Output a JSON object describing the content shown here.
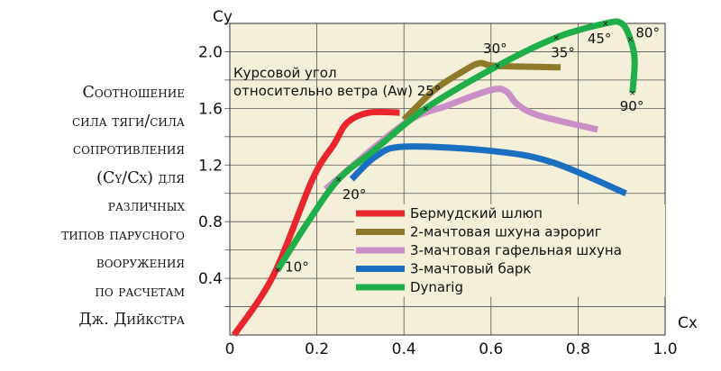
{
  "chart_data": {
    "type": "line",
    "title_lines": [
      "Соотношение",
      "сила тяги/сила",
      "сопротивления",
      "(Cy/Cx) для",
      "различных",
      "типов парусного",
      "вооружения",
      "по расчетам",
      "Дж. Дийкстра"
    ],
    "xlabel": "Cx",
    "ylabel": "Cy",
    "xlim": [
      0,
      1.0
    ],
    "ylim": [
      0,
      2.2
    ],
    "x_ticks": [
      "0",
      "0.2",
      "0.4",
      "0.6",
      "0.8",
      "1.0"
    ],
    "x_tick_values": [
      0,
      0.2,
      0.4,
      0.6,
      0.8,
      1.0
    ],
    "y_ticks": [
      "0.4",
      "0.8",
      "1.2",
      "1.6",
      "2.0"
    ],
    "y_tick_values": [
      0.4,
      0.8,
      1.2,
      1.6,
      2.0
    ],
    "grid": true,
    "legend_placement": "center-bottom",
    "annotation_lines": [
      "Курсовой угол",
      "относительно ветра (Aw) 25°"
    ],
    "series": [
      {
        "name": "Бермудский шлюп",
        "color": "#e8262b",
        "points": [
          [
            0.01,
            0
          ],
          [
            0.1,
            0.42
          ],
          [
            0.19,
            1.1
          ],
          [
            0.24,
            1.35
          ],
          [
            0.27,
            1.5
          ],
          [
            0.32,
            1.57
          ],
          [
            0.39,
            1.57
          ]
        ]
      },
      {
        "name": "2-мачтовая шхуна аэрориг",
        "color": "#8e7a2a",
        "points": [
          [
            0.4,
            1.52
          ],
          [
            0.47,
            1.73
          ],
          [
            0.54,
            1.87
          ],
          [
            0.575,
            1.92
          ],
          [
            0.61,
            1.9
          ],
          [
            0.76,
            1.89
          ]
        ]
      },
      {
        "name": "3-мачтовая гафельная шхуна",
        "color": "#c98fc6",
        "points": [
          [
            0.22,
            1.03
          ],
          [
            0.4,
            1.49
          ],
          [
            0.5,
            1.62
          ],
          [
            0.6,
            1.73
          ],
          [
            0.635,
            1.72
          ],
          [
            0.66,
            1.63
          ],
          [
            0.71,
            1.55
          ],
          [
            0.845,
            1.45
          ]
        ]
      },
      {
        "name": "3-мачтовый барк",
        "color": "#1a6fc0",
        "points": [
          [
            0.28,
            1.1
          ],
          [
            0.335,
            1.26
          ],
          [
            0.4,
            1.33
          ],
          [
            0.6,
            1.3
          ],
          [
            0.74,
            1.22
          ],
          [
            0.91,
            1.0
          ]
        ]
      },
      {
        "name": "Dynarig",
        "color": "#1fae4a",
        "points": [
          [
            0.11,
            0.46
          ],
          [
            0.18,
            0.8
          ],
          [
            0.25,
            1.1
          ],
          [
            0.33,
            1.3
          ],
          [
            0.45,
            1.6
          ],
          [
            0.615,
            1.9
          ],
          [
            0.75,
            2.1
          ],
          [
            0.863,
            2.2
          ],
          [
            0.9,
            2.2
          ],
          [
            0.92,
            2.09
          ],
          [
            0.93,
            1.94
          ],
          [
            0.925,
            1.71
          ]
        ]
      }
    ],
    "angle_markers": [
      {
        "label": "10°",
        "x": 0.11,
        "y": 0.46
      },
      {
        "label": "20°",
        "x": 0.25,
        "y": 1.1
      },
      {
        "label": "25°",
        "x": 0.45,
        "y": 1.6
      },
      {
        "label": "30°",
        "x": 0.615,
        "y": 1.9
      },
      {
        "label": "35°",
        "x": 0.75,
        "y": 2.1
      },
      {
        "label": "45°",
        "x": 0.863,
        "y": 2.2
      },
      {
        "label": "80°",
        "x": 0.92,
        "y": 2.09
      },
      {
        "label": "90°",
        "x": 0.925,
        "y": 1.71
      }
    ],
    "plot_background": "#f3efd9"
  }
}
